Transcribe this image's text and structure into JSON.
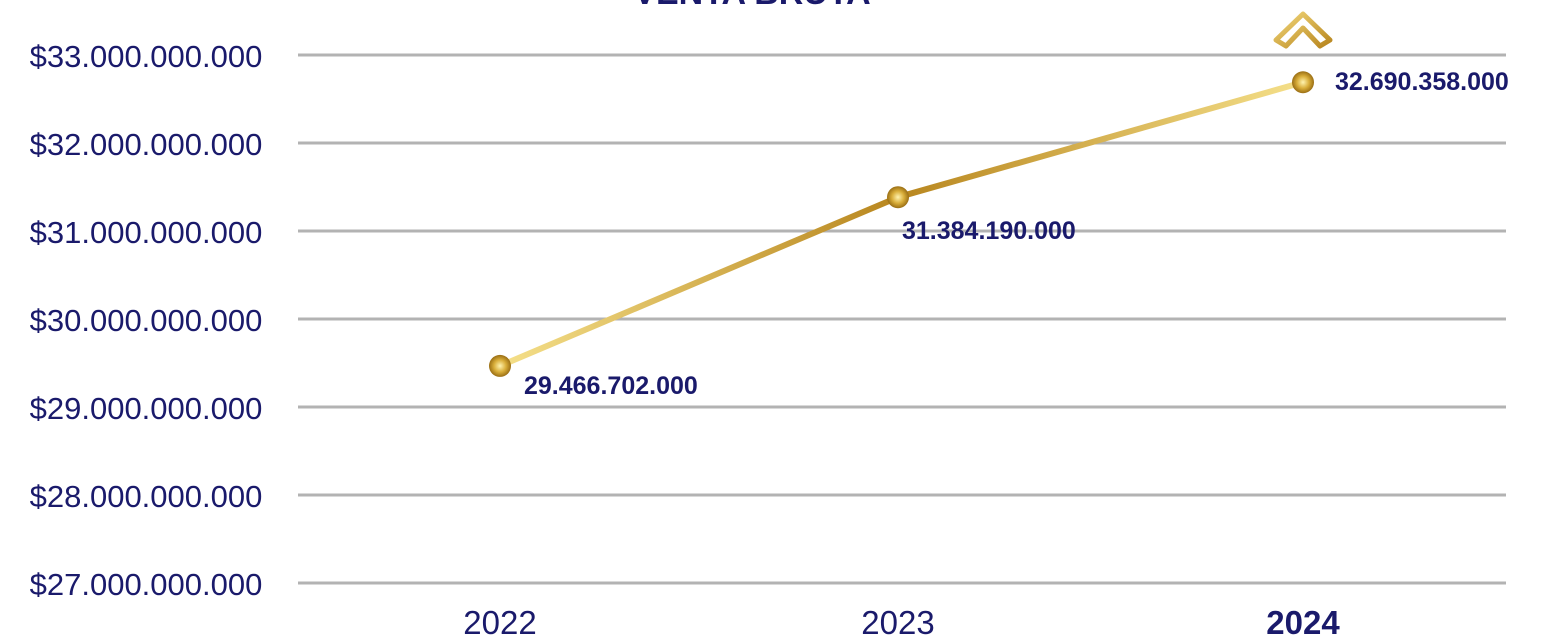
{
  "chart_data": {
    "type": "line",
    "title": "VENTA BRUTA",
    "categories": [
      "2022",
      "2023",
      "2024"
    ],
    "highlight_category": "2024",
    "values": [
      29466702000,
      31384190000,
      32690358000
    ],
    "data_labels": [
      "29.466.702.000",
      "31.384.190.000",
      "32.690.358.000"
    ],
    "ylim": [
      27000000000,
      33000000000
    ],
    "yticks": [
      33000000000,
      32000000000,
      31000000000,
      30000000000,
      29000000000,
      28000000000,
      27000000000
    ],
    "ytick_labels": [
      "$33.000.000.000",
      "$32.000.000.000",
      "$31.000.000.000",
      "$30.000.000.000",
      "$29.000.000.000",
      "$28.000.000.000",
      "$27.000.000.000"
    ],
    "grid": true,
    "legend": "none",
    "indicator_icon": "chevron-up-icon",
    "colors": {
      "text": "#1a1a6b",
      "grid": "#b3b3b3",
      "line_light": "#f5e08a",
      "line_dark": "#b8861e",
      "marker": "#c9a227"
    }
  }
}
